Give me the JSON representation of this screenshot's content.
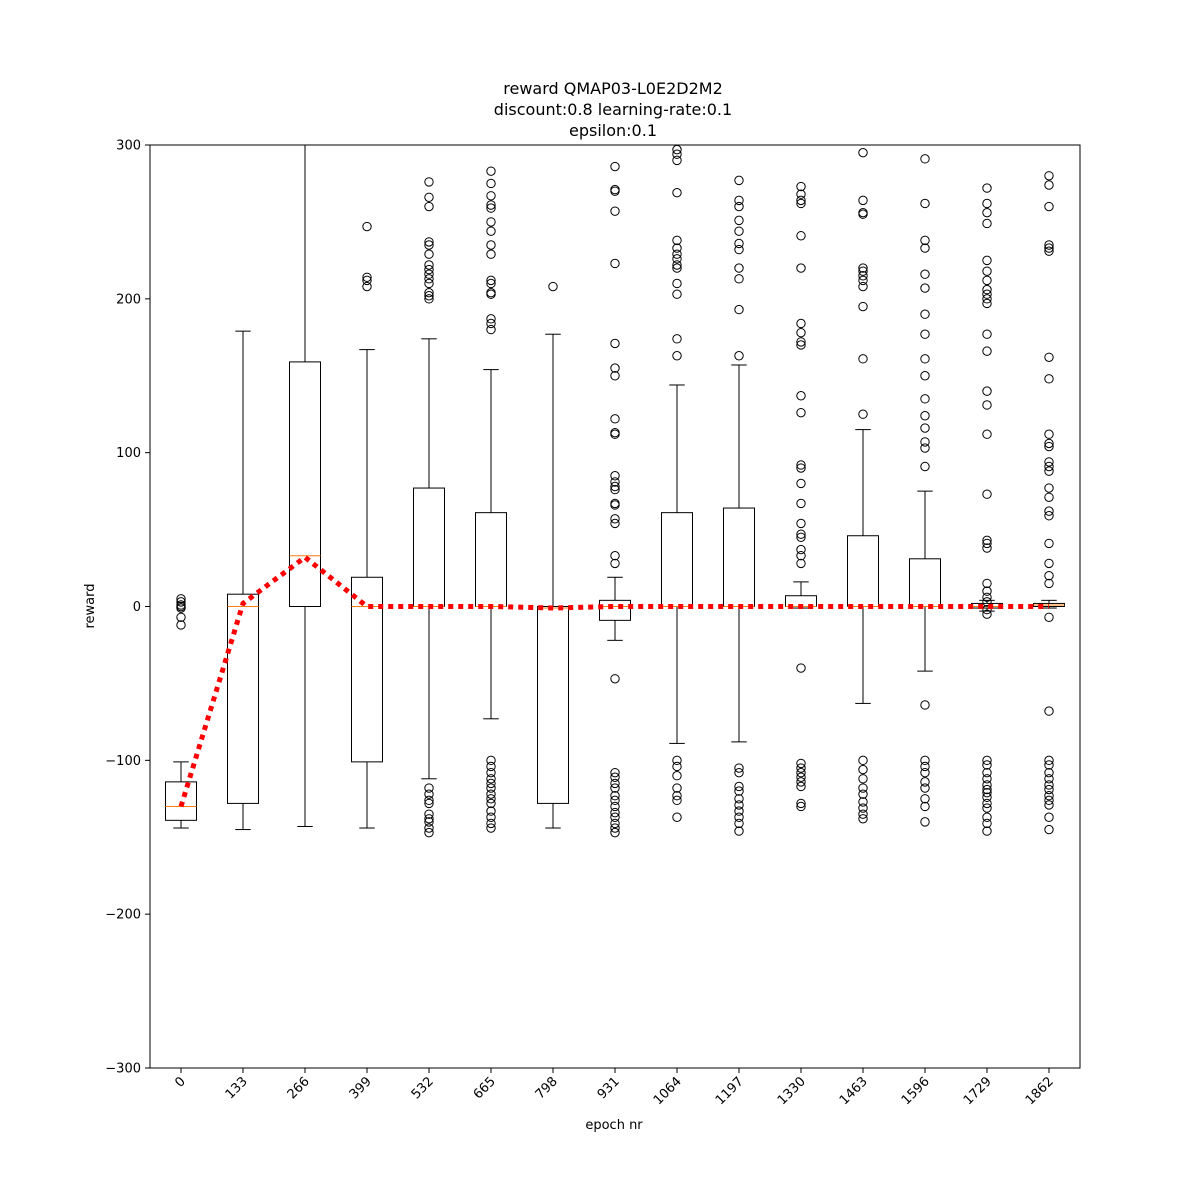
{
  "chart_data": {
    "type": "boxplot",
    "title_lines": [
      "reward QMAP03-L0E2D2M2",
      "discount:0.8 learning-rate:0.1",
      "epsilon:0.1"
    ],
    "xlabel": "epoch nr",
    "ylabel": "reward",
    "ylim": [
      -300,
      300
    ],
    "yticks": [
      -300,
      -200,
      -100,
      0,
      100,
      200,
      300
    ],
    "grid": false,
    "colors": {
      "box": "#000000",
      "median": "#ff7f0e",
      "mean_line": "#ff0000"
    },
    "categories": [
      "0",
      "133",
      "266",
      "399",
      "532",
      "665",
      "798",
      "931",
      "1064",
      "1197",
      "1330",
      "1463",
      "1596",
      "1729",
      "1862"
    ],
    "boxes": [
      {
        "q1": -139,
        "median": -130,
        "q3": -114,
        "whislo": -144,
        "whishi": -101,
        "fliers": [
          5,
          3,
          1,
          0,
          -1,
          -7,
          -12
        ]
      },
      {
        "q1": -128,
        "median": 0,
        "q3": 8,
        "whislo": -145,
        "whishi": 179,
        "fliers": []
      },
      {
        "q1": 0,
        "median": 33,
        "q3": 159,
        "whislo": -143,
        "whishi": 300,
        "fliers": []
      },
      {
        "q1": -101,
        "median": 0,
        "q3": 19,
        "whislo": -144,
        "whishi": 167,
        "fliers": [
          247,
          214,
          212,
          208
        ]
      },
      {
        "q1": 0,
        "median": 0,
        "q3": 77,
        "whislo": -112,
        "whishi": 174,
        "fliers": [
          276,
          266,
          260,
          237,
          235,
          229,
          222,
          219,
          216,
          213,
          210,
          204,
          202,
          200,
          -118,
          -122,
          -126,
          -128,
          -135,
          -138,
          -140,
          -144,
          -147
        ]
      },
      {
        "q1": 0,
        "median": 0,
        "q3": 61,
        "whislo": -73,
        "whishi": 154,
        "fliers": [
          283,
          275,
          267,
          261,
          259,
          250,
          244,
          235,
          229,
          212,
          210,
          204,
          203,
          187,
          184,
          180,
          -100,
          -104,
          -108,
          -112,
          -115,
          -118,
          -122,
          -125,
          -128,
          -133,
          -137,
          -141,
          -144
        ]
      },
      {
        "q1": -128,
        "median": -1,
        "q3": 0,
        "whislo": -144,
        "whishi": 177,
        "fliers": [
          208
        ]
      },
      {
        "q1": -9,
        "median": 0,
        "q3": 4,
        "whislo": -22,
        "whishi": 19,
        "fliers": [
          286,
          271,
          270,
          257,
          223,
          171,
          155,
          150,
          122,
          113,
          112,
          85,
          81,
          78,
          76,
          67,
          66,
          57,
          54,
          33,
          28,
          -47,
          -108,
          -111,
          -115,
          -118,
          -123,
          -126,
          -130,
          -134,
          -137,
          -141,
          -144,
          -147
        ]
      },
      {
        "q1": 0,
        "median": 0,
        "q3": 61,
        "whislo": -89,
        "whishi": 144,
        "fliers": [
          297,
          294,
          290,
          269,
          238,
          233,
          229,
          226,
          222,
          220,
          210,
          203,
          174,
          163,
          -100,
          -104,
          -110,
          -118,
          -123,
          -126,
          -137
        ]
      },
      {
        "q1": 0,
        "median": 0,
        "q3": 64,
        "whislo": -88,
        "whishi": 157,
        "fliers": [
          277,
          264,
          260,
          251,
          244,
          236,
          232,
          220,
          213,
          193,
          163,
          -105,
          -108,
          -117,
          -120,
          -125,
          -129,
          -133,
          -137,
          -141,
          -146
        ]
      },
      {
        "q1": 0,
        "median": 0,
        "q3": 7,
        "whislo": -1,
        "whishi": 16,
        "fliers": [
          273,
          268,
          264,
          262,
          241,
          220,
          184,
          178,
          172,
          170,
          137,
          126,
          92,
          90,
          80,
          67,
          54,
          47,
          45,
          37,
          33,
          28,
          -40,
          -102,
          -105,
          -108,
          -111,
          -114,
          -117,
          -128,
          -130
        ]
      },
      {
        "q1": 0,
        "median": 0,
        "q3": 46,
        "whislo": -63,
        "whishi": 115,
        "fliers": [
          295,
          264,
          256,
          255,
          220,
          218,
          215,
          212,
          208,
          195,
          161,
          125,
          -100,
          -106,
          -112,
          -118,
          -122,
          -127,
          -131,
          -135,
          -138
        ]
      },
      {
        "q1": 0,
        "median": 0,
        "q3": 31,
        "whislo": -42,
        "whishi": 75,
        "fliers": [
          291,
          262,
          238,
          233,
          216,
          207,
          190,
          177,
          161,
          150,
          135,
          124,
          116,
          107,
          103,
          91,
          -64,
          -100,
          -104,
          -108,
          -114,
          -118,
          -125,
          -130,
          -140
        ]
      },
      {
        "q1": -1,
        "median": 0,
        "q3": 2,
        "whislo": -3,
        "whishi": 4,
        "fliers": [
          272,
          262,
          256,
          249,
          225,
          218,
          212,
          206,
          203,
          200,
          197,
          177,
          166,
          140,
          131,
          112,
          73,
          43,
          41,
          38,
          15,
          10,
          6,
          3,
          -2,
          -5,
          -100,
          -103,
          -108,
          -112,
          -116,
          -119,
          -121,
          -124,
          -128,
          -131,
          -137,
          -141,
          -146
        ]
      },
      {
        "q1": 0,
        "median": 1,
        "q3": 2,
        "whislo": -1,
        "whishi": 4,
        "fliers": [
          280,
          274,
          260,
          235,
          233,
          231,
          162,
          148,
          112,
          106,
          104,
          94,
          91,
          88,
          77,
          71,
          62,
          59,
          41,
          28,
          20,
          15,
          -7,
          -68,
          -100,
          -103,
          -108,
          -112,
          -116,
          -119,
          -123,
          -126,
          -129,
          -137,
          -145
        ]
      }
    ],
    "mean_line": [
      -130,
      2,
      32,
      0,
      0,
      0,
      -1,
      0,
      0,
      0,
      0,
      0,
      0,
      0,
      0
    ]
  }
}
